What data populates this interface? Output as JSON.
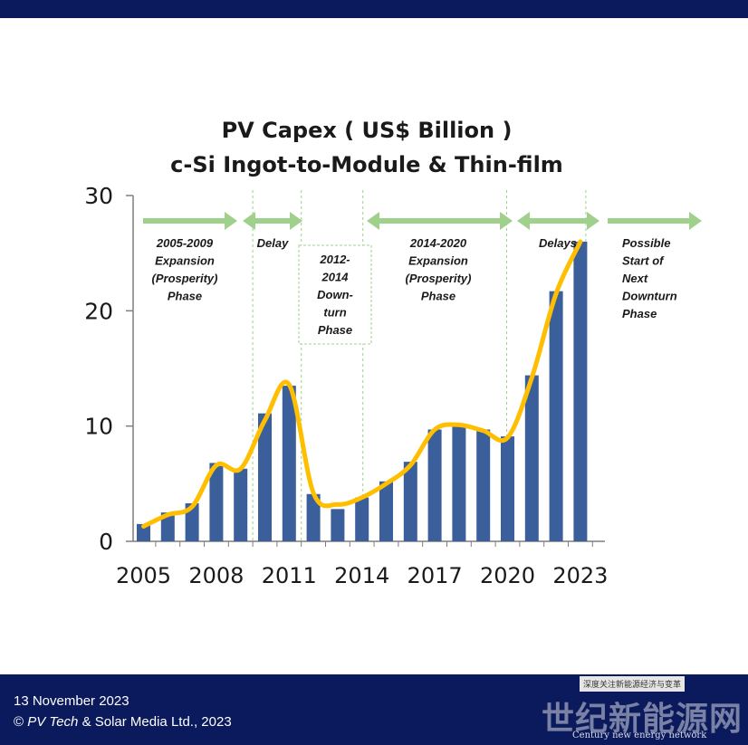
{
  "chart_data": {
    "type": "bar",
    "title_line1": "PV Capex ( US$ Billion )",
    "title_line2": "c-Si Ingot-to-Module & Thin-film",
    "x_tick_labels": [
      "2005",
      "2008",
      "2011",
      "2014",
      "2017",
      "2020",
      "2023"
    ],
    "y_tick_labels": [
      "0",
      "10",
      "20",
      "30"
    ],
    "ylim": [
      0,
      30
    ],
    "categories": [
      2005,
      2006,
      2007,
      2008,
      2009,
      2010,
      2011,
      2012,
      2013,
      2014,
      2015,
      2016,
      2017,
      2018,
      2019,
      2020,
      2021,
      2022,
      2023
    ],
    "values": [
      1.5,
      2.5,
      3.3,
      6.8,
      6.3,
      11.1,
      13.5,
      4.1,
      2.8,
      3.8,
      5.2,
      6.9,
      9.7,
      10.0,
      9.7,
      9.1,
      14.4,
      21.7,
      26.0
    ],
    "trend": [
      1.3,
      2.3,
      3.0,
      6.6,
      6.3,
      10.5,
      13.6,
      4.2,
      3.2,
      3.8,
      5.0,
      6.6,
      9.7,
      10.1,
      9.6,
      9.0,
      14.2,
      21.5,
      26.0
    ],
    "bar_color": "#3a5f9a",
    "trend_color": "#ffbf00",
    "arrow_color": "#9fd08c",
    "grid": false,
    "annotations": [
      {
        "text": [
          "2005-2009",
          "Expansion",
          "(Prosperity)",
          "Phase"
        ]
      },
      {
        "text": [
          "Delay"
        ]
      },
      {
        "text": [
          "2012-",
          "2014",
          "Down-",
          "turn",
          "Phase"
        ]
      },
      {
        "text": [
          "2014-2020",
          "Expansion",
          "(Prosperity)",
          "Phase"
        ]
      },
      {
        "text": [
          "Delays"
        ]
      },
      {
        "text": [
          "Possible",
          "Start of",
          "Next",
          "Downturn",
          "Phase"
        ]
      }
    ]
  },
  "footer": {
    "date": "13 November  2023",
    "copyright_symbol": "©",
    "publisher": "PV Tech",
    "rest": "& Solar Media Ltd., 2023"
  },
  "watermark": {
    "top_text": "深度关注新能源经济与变革",
    "main_text": "世纪新能源网",
    "sub_text": "Century new energy network"
  }
}
